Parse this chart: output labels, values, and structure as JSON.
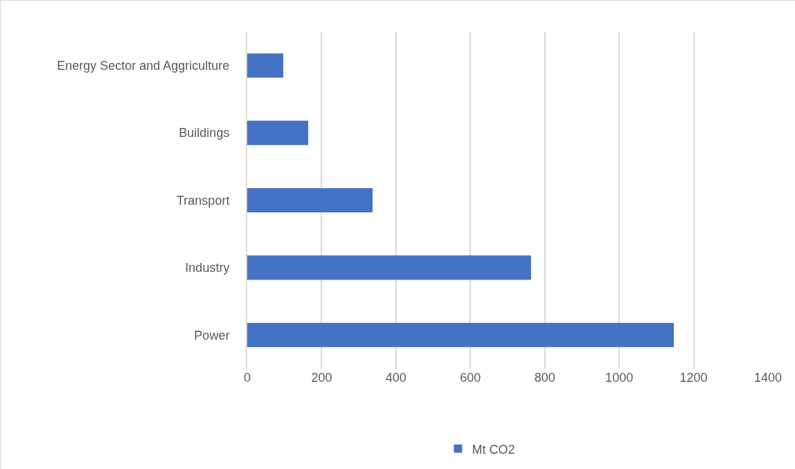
{
  "chart_data": {
    "type": "bar",
    "orientation": "horizontal",
    "categories": [
      "Energy Sector and Aggriculture",
      "Buildings",
      "Transport",
      "Industry",
      "Power"
    ],
    "series": [
      {
        "name": "Mt CO2",
        "color": "#4472c4",
        "values": [
          97,
          164,
          337,
          763,
          1147
        ]
      }
    ],
    "xlim": [
      0,
      1400
    ],
    "xticks": [
      0,
      200,
      400,
      600,
      800,
      1000,
      1200,
      1400
    ],
    "grid": "x",
    "legend": "bottom"
  }
}
